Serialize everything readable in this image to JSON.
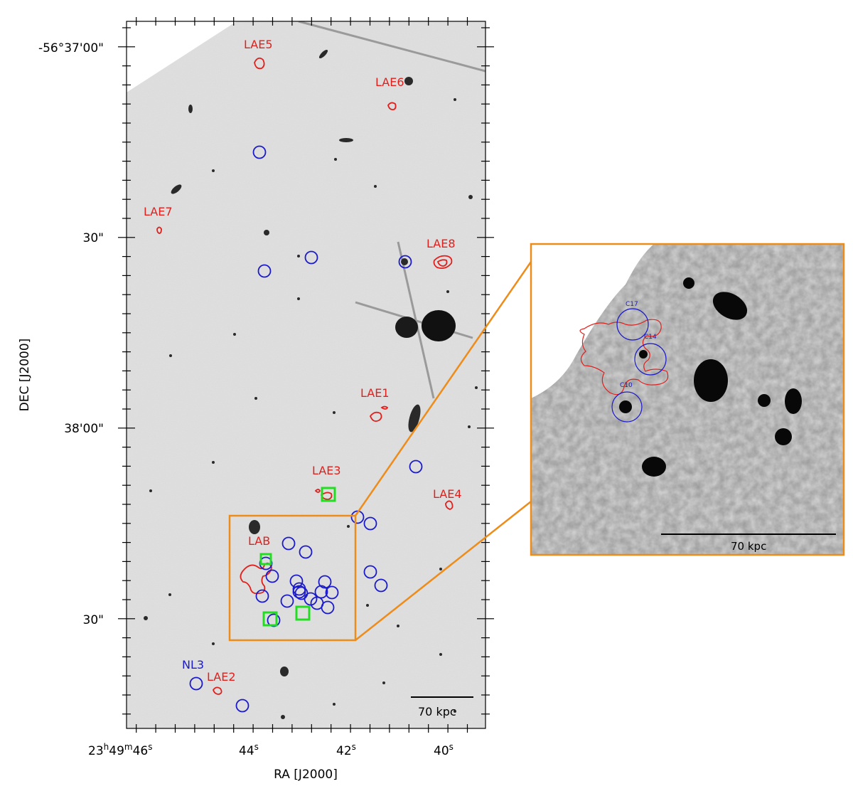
{
  "axes": {
    "ylabel": "DEC [J2000]",
    "xlabel": "RA [J2000]",
    "yticks": [
      "-56°37'00\"",
      "30\"",
      "38'00\"",
      "30\""
    ],
    "xticks": [
      {
        "main": "23",
        "h": "h",
        "m": "49",
        "mm": "m",
        "s": "46",
        "ss": "s"
      },
      {
        "main": "44",
        "ss": "s"
      },
      {
        "main": "42",
        "ss": "s"
      },
      {
        "main": "40",
        "ss": "s"
      }
    ]
  },
  "labels": {
    "LAE5": "LAE5",
    "LAE6": "LAE6",
    "LAE7": "LAE7",
    "LAE8": "LAE8",
    "LAE1": "LAE1",
    "LAE3": "LAE3",
    "LAE4": "LAE4",
    "LAB": "LAB",
    "LAE2": "LAE2",
    "NL3": "NL3"
  },
  "scalebar": {
    "main": "70 kpc",
    "inset": "70 kpc"
  },
  "inset_labels": {
    "c17": "C17",
    "c14": "C14",
    "c10": "C10"
  },
  "colors": {
    "lae": "#e0201c",
    "member": "#1a1acc",
    "square": "#22dd22",
    "zoom": "#ee8c1a",
    "sky": "#d9d9d9"
  }
}
